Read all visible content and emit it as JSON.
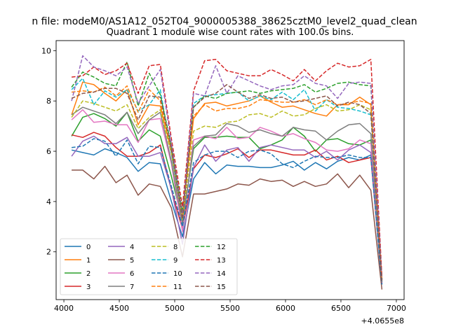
{
  "suptitle": "n file: modeM0/AS1A12_052T04_9000005388_38625cztM0_level2_quad_clean",
  "chart_data": {
    "type": "line",
    "title": "Quadrant 1 module wise count rates with 100.0s bins.",
    "xlabel": "",
    "ylabel": "",
    "x_offset_label": "+4.0655e8",
    "xlim": [
      3930,
      7070
    ],
    "ylim": [
      0.1,
      10.4
    ],
    "xticks": [
      4000,
      4500,
      5000,
      5500,
      6000,
      6500,
      7000
    ],
    "yticks": [
      2,
      4,
      6,
      8,
      10
    ],
    "grid": false,
    "legend_position": "lower-left",
    "legend_columns": 4,
    "x": [
      4070,
      4170,
      4270,
      4370,
      4470,
      4570,
      4670,
      4770,
      4870,
      4970,
      5070,
      5170,
      5270,
      5370,
      5470,
      5570,
      5670,
      5770,
      5870,
      5970,
      6070,
      6170,
      6270,
      6370,
      6470,
      6570,
      6670,
      6770,
      6870
    ],
    "series": [
      {
        "name": "0",
        "color": "#1f77b4",
        "style": "solid",
        "values": [
          6.05,
          5.95,
          5.85,
          6.1,
          5.95,
          5.75,
          5.2,
          5.55,
          5.5,
          4.0,
          2.6,
          4.9,
          5.55,
          5.1,
          5.45,
          5.4,
          5.4,
          5.35,
          5.35,
          5.45,
          5.6,
          5.25,
          5.55,
          5.3,
          5.6,
          5.75,
          5.65,
          5.85,
          0.7
        ]
      },
      {
        "name": "1",
        "color": "#ff7f0e",
        "style": "solid",
        "values": [
          7.45,
          8.75,
          8.65,
          8.3,
          8.0,
          8.45,
          7.05,
          7.85,
          7.8,
          6.0,
          3.5,
          7.3,
          7.9,
          7.95,
          7.8,
          7.9,
          8.0,
          8.2,
          7.95,
          7.75,
          7.8,
          7.65,
          7.5,
          7.4,
          7.85,
          7.85,
          8.15,
          7.85,
          0.9
        ]
      },
      {
        "name": "2",
        "color": "#2ca02c",
        "style": "solid",
        "values": [
          6.6,
          7.35,
          7.5,
          7.3,
          7.0,
          7.55,
          6.4,
          6.85,
          6.6,
          5.0,
          3.2,
          6.1,
          6.55,
          6.55,
          6.6,
          6.55,
          6.55,
          6.1,
          6.25,
          6.45,
          6.95,
          6.6,
          6.0,
          6.45,
          6.5,
          6.3,
          6.25,
          6.45,
          0.8
        ]
      },
      {
        "name": "3",
        "color": "#d62728",
        "style": "solid",
        "values": [
          6.65,
          6.55,
          6.75,
          6.6,
          6.15,
          5.8,
          5.8,
          5.95,
          6.25,
          4.45,
          2.9,
          5.3,
          5.85,
          5.75,
          5.9,
          6.1,
          5.75,
          6.05,
          6.05,
          5.95,
          5.85,
          5.85,
          6.05,
          5.65,
          5.8,
          5.55,
          5.65,
          5.75,
          0.75
        ]
      },
      {
        "name": "4",
        "color": "#9467bd",
        "style": "solid",
        "values": [
          5.8,
          6.4,
          6.6,
          6.3,
          6.3,
          6.55,
          5.8,
          5.8,
          5.95,
          4.5,
          2.3,
          5.35,
          6.25,
          5.6,
          6.05,
          6.15,
          5.6,
          6.15,
          6.25,
          6.15,
          6.05,
          6.05,
          5.75,
          6.0,
          5.65,
          6.05,
          6.25,
          5.95,
          0.75
        ]
      },
      {
        "name": "5",
        "color": "#8c564b",
        "style": "solid",
        "values": [
          5.25,
          5.25,
          4.9,
          5.4,
          4.75,
          5.05,
          4.25,
          4.7,
          4.6,
          3.75,
          1.8,
          4.3,
          4.3,
          4.4,
          4.5,
          4.7,
          4.65,
          4.9,
          4.8,
          4.85,
          4.6,
          4.8,
          4.6,
          4.7,
          5.1,
          4.55,
          5.05,
          4.45,
          0.5
        ]
      },
      {
        "name": "6",
        "color": "#e377c2",
        "style": "solid",
        "values": [
          7.25,
          7.65,
          7.15,
          7.2,
          7.05,
          7.05,
          6.35,
          7.25,
          7.3,
          5.5,
          2.8,
          6.45,
          6.6,
          6.5,
          6.95,
          6.5,
          6.55,
          6.95,
          6.8,
          6.6,
          6.7,
          6.5,
          6.35,
          6.05,
          6.0,
          6.1,
          6.45,
          6.3,
          0.8
        ]
      },
      {
        "name": "7",
        "color": "#7f7f7f",
        "style": "solid",
        "values": [
          7.45,
          7.75,
          7.6,
          7.45,
          7.1,
          7.55,
          6.7,
          7.25,
          7.55,
          5.6,
          3.1,
          6.2,
          6.6,
          6.65,
          7.1,
          7.0,
          6.75,
          6.85,
          6.7,
          6.6,
          6.95,
          6.85,
          6.8,
          6.45,
          6.8,
          7.05,
          7.1,
          6.7,
          0.8
        ]
      },
      {
        "name": "8",
        "color": "#bcbd22",
        "style": "dashed",
        "values": [
          7.35,
          8.0,
          7.9,
          7.75,
          7.6,
          7.85,
          6.9,
          7.35,
          7.65,
          5.9,
          3.3,
          6.8,
          7.0,
          6.95,
          7.15,
          7.2,
          7.45,
          7.5,
          7.35,
          7.6,
          7.4,
          7.45,
          7.7,
          7.85,
          7.6,
          7.65,
          7.85,
          7.65,
          0.85
        ]
      },
      {
        "name": "9",
        "color": "#17becf",
        "style": "dashed",
        "values": [
          8.45,
          8.9,
          7.85,
          8.4,
          8.15,
          8.45,
          7.6,
          7.85,
          8.45,
          5.9,
          3.4,
          7.9,
          8.2,
          8.25,
          8.3,
          8.35,
          8.0,
          8.2,
          8.05,
          8.35,
          8.05,
          8.45,
          7.6,
          8.05,
          7.75,
          7.7,
          7.6,
          7.45,
          0.9
        ]
      },
      {
        "name": "10",
        "color": "#1f77b4",
        "style": "dashed",
        "values": [
          6.15,
          6.2,
          6.5,
          6.4,
          5.8,
          6.45,
          5.5,
          6.2,
          6.15,
          4.6,
          3.0,
          5.55,
          5.85,
          6.0,
          6.0,
          5.75,
          6.0,
          6.05,
          5.9,
          5.5,
          5.35,
          5.6,
          5.8,
          5.75,
          5.75,
          5.85,
          5.75,
          5.75,
          0.7
        ]
      },
      {
        "name": "11",
        "color": "#ff7f0e",
        "style": "dashed",
        "values": [
          8.35,
          8.4,
          8.35,
          8.55,
          8.2,
          8.6,
          7.55,
          8.45,
          8.0,
          6.0,
          3.5,
          7.4,
          7.85,
          7.6,
          7.7,
          7.7,
          7.8,
          8.05,
          8.0,
          7.95,
          7.95,
          8.05,
          7.85,
          8.05,
          7.85,
          7.9,
          8.0,
          7.9,
          0.9
        ]
      },
      {
        "name": "12",
        "color": "#2ca02c",
        "style": "dashed",
        "values": [
          8.55,
          9.15,
          8.95,
          8.7,
          8.6,
          9.55,
          7.8,
          9.1,
          8.25,
          6.2,
          3.6,
          7.75,
          8.2,
          8.1,
          8.3,
          8.35,
          8.4,
          8.3,
          8.4,
          8.45,
          8.5,
          8.65,
          8.35,
          8.5,
          8.7,
          8.75,
          8.65,
          8.6,
          0.9
        ]
      },
      {
        "name": "13",
        "color": "#d62728",
        "style": "dashed",
        "values": [
          8.95,
          9.0,
          9.35,
          9.05,
          9.2,
          9.5,
          8.3,
          9.4,
          9.45,
          6.5,
          3.8,
          8.4,
          9.6,
          9.65,
          9.2,
          9.1,
          9.0,
          9.0,
          9.25,
          9.05,
          8.8,
          9.25,
          8.8,
          9.2,
          9.5,
          9.35,
          9.4,
          9.65,
          1.0
        ]
      },
      {
        "name": "14",
        "color": "#9467bd",
        "style": "dashed",
        "values": [
          8.0,
          9.8,
          9.35,
          9.2,
          9.0,
          9.35,
          7.9,
          8.6,
          9.25,
          6.3,
          3.4,
          8.3,
          8.2,
          9.4,
          8.3,
          9.0,
          8.8,
          8.6,
          8.45,
          8.6,
          8.65,
          9.0,
          8.7,
          8.6,
          8.1,
          8.7,
          8.75,
          8.7,
          0.9
        ]
      },
      {
        "name": "15",
        "color": "#8c564b",
        "style": "dashed",
        "values": [
          8.1,
          8.3,
          8.35,
          8.5,
          8.5,
          8.3,
          7.25,
          8.2,
          8.15,
          6.1,
          3.3,
          7.75,
          8.15,
          8.3,
          8.65,
          8.35,
          8.1,
          8.25,
          8.1,
          8.15,
          7.95,
          8.0,
          8.1,
          8.2,
          7.8,
          7.95,
          7.85,
          7.5,
          0.85
        ]
      }
    ]
  }
}
